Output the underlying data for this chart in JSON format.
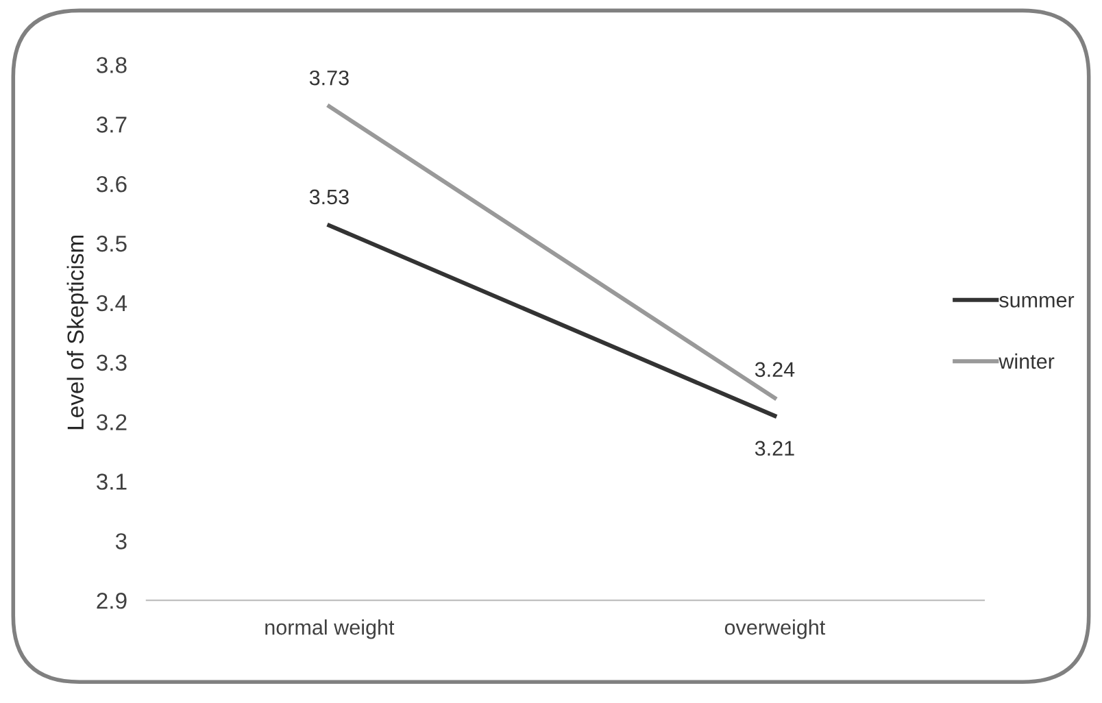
{
  "chart_data": {
    "type": "line",
    "ylabel": "Level of Skepticism",
    "categories": [
      "normal weight",
      "overweight"
    ],
    "series": [
      {
        "name": "summer",
        "color": "#333333",
        "values": [
          3.53,
          3.21
        ]
      },
      {
        "name": "winter",
        "color": "#999999",
        "values": [
          3.73,
          3.24
        ]
      }
    ],
    "ylim": [
      2.9,
      3.8
    ],
    "yticks": [
      {
        "value": 2.9,
        "label": "2.9"
      },
      {
        "value": 3.0,
        "label": "3"
      },
      {
        "value": 3.1,
        "label": "3.1"
      },
      {
        "value": 3.2,
        "label": "3.2"
      },
      {
        "value": 3.3,
        "label": "3.3"
      },
      {
        "value": 3.4,
        "label": "3.4"
      },
      {
        "value": 3.5,
        "label": "3.5"
      },
      {
        "value": 3.6,
        "label": "3.6"
      },
      {
        "value": 3.7,
        "label": "3.7"
      },
      {
        "value": 3.8,
        "label": "3.8"
      }
    ],
    "grid": false,
    "legend": "right",
    "data_labels": true,
    "marker": "none",
    "line_style": "solid"
  }
}
